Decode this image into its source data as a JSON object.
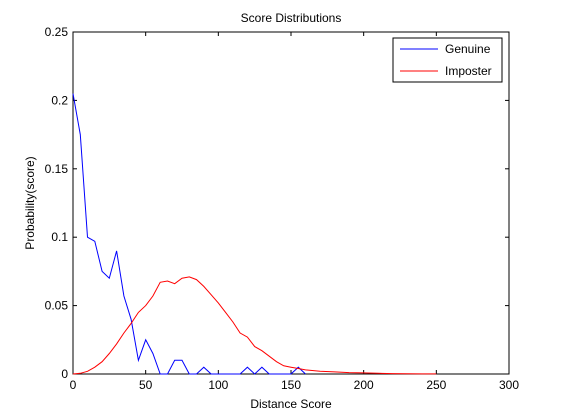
{
  "chart_data": {
    "type": "line",
    "title": "Score Distributions",
    "xlabel": "Distance Score",
    "ylabel": "Probability(score)",
    "xlim": [
      0,
      300
    ],
    "ylim": [
      0,
      0.25
    ],
    "xticks": [
      0,
      50,
      100,
      150,
      200,
      250,
      300
    ],
    "yticks": [
      0,
      0.05,
      0.1,
      0.15,
      0.2,
      0.25
    ],
    "ytick_labels": [
      "0",
      "0.05",
      "0.1",
      "0.15",
      "0.2",
      "0.25"
    ],
    "grid": false,
    "legend": "top-right",
    "series": [
      {
        "name": "Genuine",
        "color": "#0000ff",
        "x": [
          0,
          5,
          10,
          15,
          20,
          25,
          30,
          35,
          40,
          45,
          50,
          55,
          60,
          65,
          70,
          75,
          80,
          85,
          90,
          95,
          100,
          105,
          110,
          115,
          120,
          125,
          130,
          135,
          140,
          145,
          150,
          155,
          160
        ],
        "y": [
          0.205,
          0.175,
          0.1,
          0.097,
          0.075,
          0.07,
          0.09,
          0.057,
          0.04,
          0.01,
          0.025,
          0.015,
          0,
          0,
          0.01,
          0.01,
          0,
          0,
          0.005,
          0,
          0,
          0,
          0,
          0,
          0.005,
          0,
          0.005,
          0,
          0,
          0,
          0,
          0.005,
          0
        ]
      },
      {
        "name": "Imposter",
        "color": "#ff0000",
        "x": [
          0,
          5,
          10,
          15,
          20,
          25,
          30,
          35,
          40,
          45,
          50,
          55,
          60,
          65,
          70,
          75,
          80,
          85,
          90,
          95,
          100,
          105,
          110,
          115,
          120,
          125,
          130,
          135,
          140,
          145,
          150,
          155,
          160,
          170,
          180,
          190,
          200,
          210,
          220,
          230,
          240,
          250
        ],
        "y": [
          0,
          0.0005,
          0.002,
          0.005,
          0.009,
          0.015,
          0.022,
          0.03,
          0.037,
          0.045,
          0.05,
          0.057,
          0.067,
          0.068,
          0.066,
          0.07,
          0.071,
          0.069,
          0.064,
          0.058,
          0.052,
          0.045,
          0.038,
          0.03,
          0.027,
          0.02,
          0.017,
          0.013,
          0.009,
          0.006,
          0.005,
          0.004,
          0.003,
          0.002,
          0.0015,
          0.001,
          0.0008,
          0.0005,
          0.0003,
          0.0002,
          0.0001,
          0.0001
        ]
      }
    ]
  }
}
